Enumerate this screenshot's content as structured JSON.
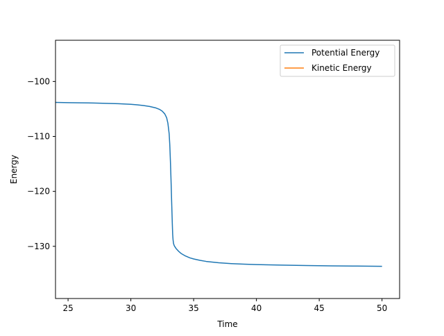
{
  "chart_data": {
    "type": "line",
    "title": "",
    "xlabel": "Time",
    "ylabel": "Energy",
    "xlim": [
      24.0,
      51.4
    ],
    "ylim": [
      -139.5,
      -92.5
    ],
    "xticks": [
      25,
      30,
      35,
      40,
      45,
      50
    ],
    "yticks": [
      -100,
      -110,
      -120,
      -130
    ],
    "xtick_labels": [
      "25",
      "30",
      "35",
      "40",
      "45",
      "50"
    ],
    "ytick_labels": [
      "−100",
      "−110",
      "−120",
      "−130"
    ],
    "grid": false,
    "legend_position": "top-right",
    "series": [
      {
        "name": "Potential Energy",
        "color": "#1f77b4",
        "x": [
          24.0,
          25.0,
          26.0,
          27.0,
          28.0,
          29.0,
          30.0,
          30.5,
          31.0,
          31.5,
          32.0,
          32.3,
          32.5,
          32.7,
          32.85,
          32.95,
          33.05,
          33.1,
          33.15,
          33.2,
          33.25,
          33.3,
          33.33,
          33.36,
          33.4,
          33.45,
          33.5,
          33.6,
          33.8,
          34.0,
          34.3,
          34.7,
          35.0,
          35.5,
          36.0,
          37.0,
          38.0,
          39.0,
          40.0,
          42.0,
          44.0,
          46.0,
          48.0,
          50.0
        ],
        "y": [
          -103.8,
          -103.85,
          -103.88,
          -103.92,
          -103.98,
          -104.05,
          -104.15,
          -104.25,
          -104.38,
          -104.55,
          -104.82,
          -105.1,
          -105.4,
          -105.9,
          -106.6,
          -107.6,
          -109.5,
          -111.5,
          -114.5,
          -118.0,
          -122.0,
          -125.8,
          -127.8,
          -128.8,
          -129.5,
          -129.85,
          -130.05,
          -130.4,
          -130.9,
          -131.3,
          -131.7,
          -132.1,
          -132.3,
          -132.55,
          -132.75,
          -133.0,
          -133.15,
          -133.25,
          -133.32,
          -133.42,
          -133.5,
          -133.56,
          -133.6,
          -133.64
        ]
      },
      {
        "name": "Kinetic Energy",
        "color": "#ff7f0e",
        "x": [],
        "y": []
      }
    ]
  }
}
